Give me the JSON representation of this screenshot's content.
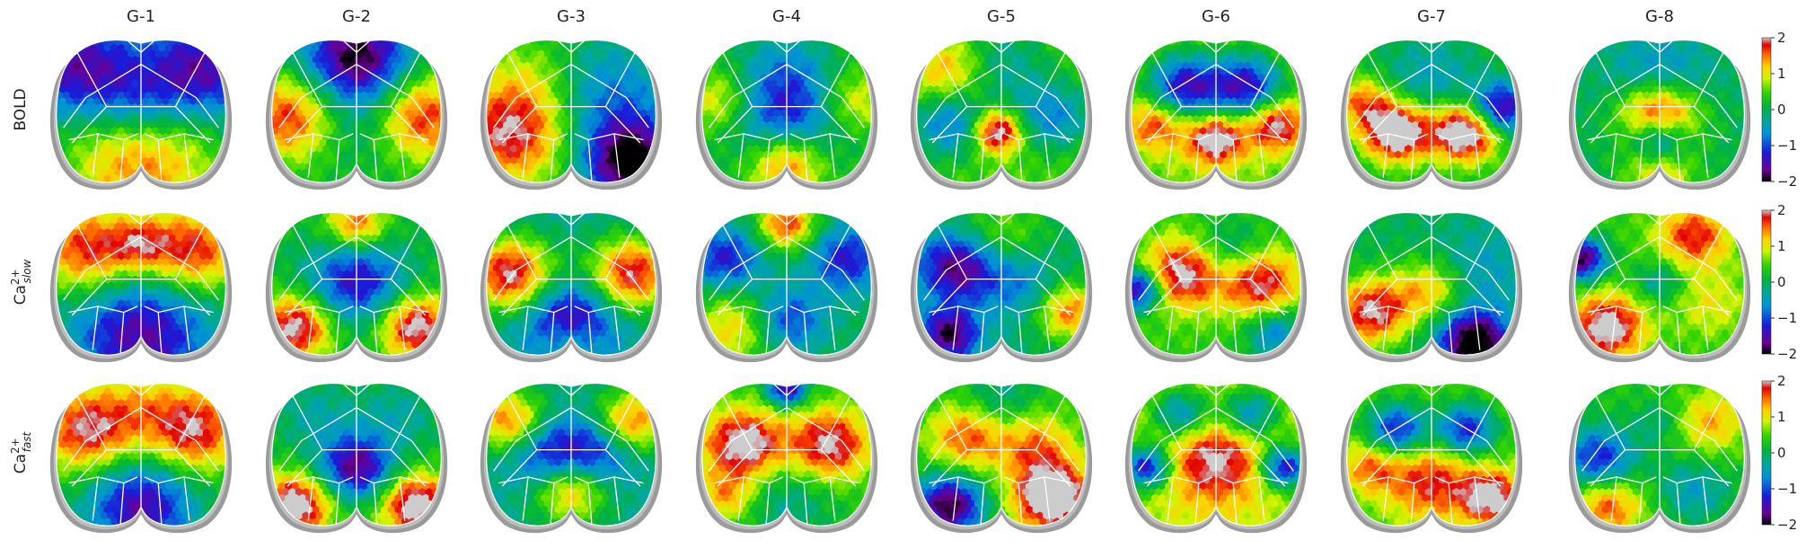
{
  "chart_data": {
    "type": "heatmap",
    "title": "",
    "columns": [
      "G-1",
      "G-2",
      "G-3",
      "G-4",
      "G-5",
      "G-6",
      "G-7",
      "G-8"
    ],
    "rows": [
      {
        "id": "bold",
        "label": "BOLD",
        "sup": "",
        "sub": ""
      },
      {
        "id": "ca_slow",
        "label": "Ca",
        "sup": "2+",
        "sub": "slow"
      },
      {
        "id": "ca_fast",
        "label": "Ca",
        "sup": "2+",
        "sub": "fast"
      }
    ],
    "colorbar": {
      "range": [
        -2,
        2
      ],
      "ticks": [
        2,
        1,
        0,
        -1,
        -2
      ],
      "tick_labels": [
        "2",
        "1",
        "0",
        "−1",
        "−2"
      ],
      "colormap": "nipy_spectral",
      "colormap_stops": [
        [
          0.0,
          "#000000"
        ],
        [
          0.08,
          "#6a0096"
        ],
        [
          0.2,
          "#1a1ad8"
        ],
        [
          0.33,
          "#0091d6"
        ],
        [
          0.42,
          "#00a7a0"
        ],
        [
          0.52,
          "#00b33c"
        ],
        [
          0.62,
          "#32d400"
        ],
        [
          0.72,
          "#d2f500"
        ],
        [
          0.8,
          "#ffd000"
        ],
        [
          0.88,
          "#ff6a00"
        ],
        [
          0.95,
          "#e30000"
        ],
        [
          1.0,
          "#cccccc"
        ]
      ]
    },
    "maps": [
      [
        {
          "base": -0.3,
          "blobs": [
            [
              0.5,
              0.85,
              1.8,
              0.35
            ],
            [
              0.15,
              0.25,
              -1.4,
              0.22
            ],
            [
              0.85,
              0.25,
              -1.4,
              0.22
            ],
            [
              0.5,
              0.45,
              -1.0,
              0.2
            ]
          ]
        },
        {
          "base": 0.2,
          "blobs": [
            [
              0.5,
              0.15,
              -2.2,
              0.22
            ],
            [
              0.12,
              0.55,
              1.6,
              0.2
            ],
            [
              0.88,
              0.55,
              1.6,
              0.2
            ],
            [
              0.5,
              0.6,
              -0.5,
              0.2
            ]
          ]
        },
        {
          "base": 0.1,
          "blobs": [
            [
              0.15,
              0.65,
              1.9,
              0.25
            ],
            [
              0.85,
              0.85,
              -2.3,
              0.2
            ],
            [
              0.7,
              0.4,
              -0.9,
              0.25
            ],
            [
              0.3,
              0.25,
              0.5,
              0.2
            ]
          ]
        },
        {
          "base": 0.3,
          "blobs": [
            [
              0.5,
              0.55,
              -1.6,
              0.25
            ],
            [
              0.5,
              0.85,
              1.7,
              0.16
            ],
            [
              0.5,
              0.2,
              -0.5,
              0.2
            ],
            [
              0.12,
              0.45,
              1.0,
              0.15
            ],
            [
              0.88,
              0.45,
              1.0,
              0.15
            ]
          ]
        },
        {
          "base": 0.5,
          "blobs": [
            [
              0.48,
              0.65,
              2.0,
              0.1
            ],
            [
              0.2,
              0.6,
              -1.3,
              0.16
            ],
            [
              0.8,
              0.55,
              -1.2,
              0.16
            ],
            [
              0.5,
              0.2,
              -0.8,
              0.2
            ],
            [
              0.2,
              0.25,
              1.0,
              0.16
            ]
          ]
        },
        {
          "base": 0.6,
          "blobs": [
            [
              0.32,
              0.35,
              -2.0,
              0.15
            ],
            [
              0.68,
              0.35,
              -2.0,
              0.15
            ],
            [
              0.5,
              0.7,
              1.8,
              0.12
            ],
            [
              0.85,
              0.6,
              1.6,
              0.12
            ],
            [
              0.15,
              0.6,
              1.2,
              0.12
            ]
          ]
        },
        {
          "base": 0.2,
          "blobs": [
            [
              0.3,
              0.65,
              2.4,
              0.14
            ],
            [
              0.7,
              0.65,
              2.4,
              0.14
            ],
            [
              0.9,
              0.5,
              -2.0,
              0.12
            ],
            [
              0.5,
              0.3,
              -0.7,
              0.2
            ],
            [
              0.1,
              0.45,
              1.2,
              0.12
            ]
          ]
        },
        {
          "base": 0.0,
          "blobs": [
            [
              0.5,
              0.55,
              2.5,
              0.16
            ],
            [
              0.5,
              0.7,
              -2.0,
              0.12
            ],
            [
              0.5,
              0.3,
              -0.8,
              0.2
            ],
            [
              0.5,
              0.92,
              1.2,
              0.15
            ]
          ]
        }
      ],
      [
        {
          "base": 0.2,
          "blobs": [
            [
              0.5,
              0.85,
              -1.8,
              0.3
            ],
            [
              0.2,
              0.3,
              1.7,
              0.2
            ],
            [
              0.8,
              0.3,
              1.7,
              0.2
            ],
            [
              0.5,
              0.25,
              1.0,
              0.12
            ]
          ]
        },
        {
          "base": 0.2,
          "blobs": [
            [
              0.5,
              0.5,
              -1.6,
              0.2
            ],
            [
              0.15,
              0.8,
              2.0,
              0.15
            ],
            [
              0.85,
              0.8,
              2.0,
              0.15
            ],
            [
              0.5,
              0.12,
              1.5,
              0.12
            ]
          ]
        },
        {
          "base": -0.3,
          "blobs": [
            [
              0.15,
              0.45,
              2.3,
              0.18
            ],
            [
              0.85,
              0.45,
              2.2,
              0.18
            ],
            [
              0.5,
              0.75,
              -1.5,
              0.18
            ],
            [
              0.5,
              0.9,
              0.8,
              0.1
            ]
          ]
        },
        {
          "base": 0.0,
          "blobs": [
            [
              0.5,
              0.12,
              1.7,
              0.12
            ],
            [
              0.15,
              0.35,
              -1.3,
              0.15
            ],
            [
              0.85,
              0.35,
              -1.3,
              0.15
            ],
            [
              0.5,
              0.75,
              -1.2,
              0.15
            ],
            [
              0.2,
              0.8,
              1.2,
              0.18
            ]
          ]
        },
        {
          "base": -0.1,
          "blobs": [
            [
              0.25,
              0.4,
              -1.8,
              0.16
            ],
            [
              0.2,
              0.85,
              -1.8,
              0.12
            ],
            [
              0.9,
              0.7,
              1.6,
              0.14
            ],
            [
              0.6,
              0.5,
              -0.8,
              0.16
            ],
            [
              0.5,
              0.2,
              0.8,
              0.2
            ]
          ]
        },
        {
          "base": 0.4,
          "blobs": [
            [
              0.3,
              0.45,
              1.8,
              0.16
            ],
            [
              0.75,
              0.5,
              1.7,
              0.16
            ],
            [
              0.05,
              0.55,
              -2.2,
              0.1
            ],
            [
              0.6,
              0.3,
              -0.8,
              0.15
            ],
            [
              0.85,
              0.85,
              -1.2,
              0.12
            ]
          ]
        },
        {
          "base": 0.0,
          "blobs": [
            [
              0.15,
              0.7,
              2.0,
              0.16
            ],
            [
              0.75,
              0.9,
              -2.4,
              0.14
            ],
            [
              0.5,
              0.55,
              1.3,
              0.15
            ],
            [
              0.75,
              0.45,
              -0.6,
              0.2
            ]
          ]
        },
        {
          "base": 0.4,
          "blobs": [
            [
              0.05,
              0.35,
              -2.3,
              0.1
            ],
            [
              0.2,
              0.8,
              1.9,
              0.15
            ],
            [
              0.7,
              0.2,
              1.4,
              0.15
            ],
            [
              0.8,
              0.65,
              0.6,
              0.15
            ],
            [
              0.5,
              0.5,
              -0.8,
              0.1
            ]
          ]
        }
      ],
      [
        {
          "base": 0.2,
          "blobs": [
            [
              0.2,
              0.35,
              1.8,
              0.2
            ],
            [
              0.8,
              0.35,
              1.8,
              0.2
            ],
            [
              0.5,
              0.85,
              -1.8,
              0.22
            ],
            [
              0.5,
              0.15,
              0.5,
              0.15
            ]
          ]
        },
        {
          "base": 0.3,
          "blobs": [
            [
              0.5,
              0.6,
              -2.0,
              0.15
            ],
            [
              0.15,
              0.85,
              2.1,
              0.14
            ],
            [
              0.85,
              0.85,
              2.1,
              0.14
            ],
            [
              0.25,
              0.25,
              -0.6,
              0.18
            ],
            [
              0.75,
              0.25,
              -0.6,
              0.18
            ]
          ]
        },
        {
          "base": -0.2,
          "blobs": [
            [
              0.15,
              0.3,
              1.8,
              0.15
            ],
            [
              0.85,
              0.3,
              1.8,
              0.15
            ],
            [
              0.5,
              0.75,
              1.6,
              0.15
            ],
            [
              0.35,
              0.5,
              -1.2,
              0.16
            ],
            [
              0.65,
              0.5,
              -1.2,
              0.16
            ]
          ]
        },
        {
          "base": 0.3,
          "blobs": [
            [
              0.25,
              0.45,
              2.0,
              0.17
            ],
            [
              0.75,
              0.45,
              1.8,
              0.17
            ],
            [
              0.5,
              0.08,
              -2.0,
              0.08
            ],
            [
              0.5,
              0.8,
              -0.6,
              0.2
            ],
            [
              0.15,
              0.8,
              1.0,
              0.12
            ]
          ]
        },
        {
          "base": 0.3,
          "blobs": [
            [
              0.2,
              0.85,
              -2.3,
              0.14
            ],
            [
              0.8,
              0.8,
              2.4,
              0.16
            ],
            [
              0.3,
              0.4,
              1.3,
              0.16
            ],
            [
              0.7,
              0.45,
              1.1,
              0.16
            ],
            [
              0.5,
              0.15,
              -0.6,
              0.15
            ]
          ]
        },
        {
          "base": 0.8,
          "blobs": [
            [
              0.5,
              0.55,
              1.3,
              0.2
            ],
            [
              0.1,
              0.6,
              -2.2,
              0.1
            ],
            [
              0.9,
              0.6,
              -2.2,
              0.1
            ],
            [
              0.3,
              0.25,
              -1.5,
              0.12
            ],
            [
              0.7,
              0.25,
              -1.5,
              0.12
            ]
          ]
        },
        {
          "base": 0.5,
          "blobs": [
            [
              0.3,
              0.35,
              -1.8,
              0.12
            ],
            [
              0.7,
              0.35,
              -1.8,
              0.12
            ],
            [
              0.5,
              0.7,
              1.3,
              0.18
            ],
            [
              0.85,
              0.8,
              1.8,
              0.12
            ],
            [
              0.15,
              0.6,
              1.0,
              0.12
            ]
          ]
        },
        {
          "base": 0.3,
          "blobs": [
            [
              0.15,
              0.55,
              -1.6,
              0.15
            ],
            [
              0.8,
              0.3,
              1.0,
              0.15
            ],
            [
              0.7,
              0.75,
              -0.8,
              0.15
            ],
            [
              0.2,
              0.85,
              1.4,
              0.15
            ],
            [
              0.5,
              0.3,
              -0.5,
              0.1
            ]
          ]
        }
      ]
    ]
  }
}
